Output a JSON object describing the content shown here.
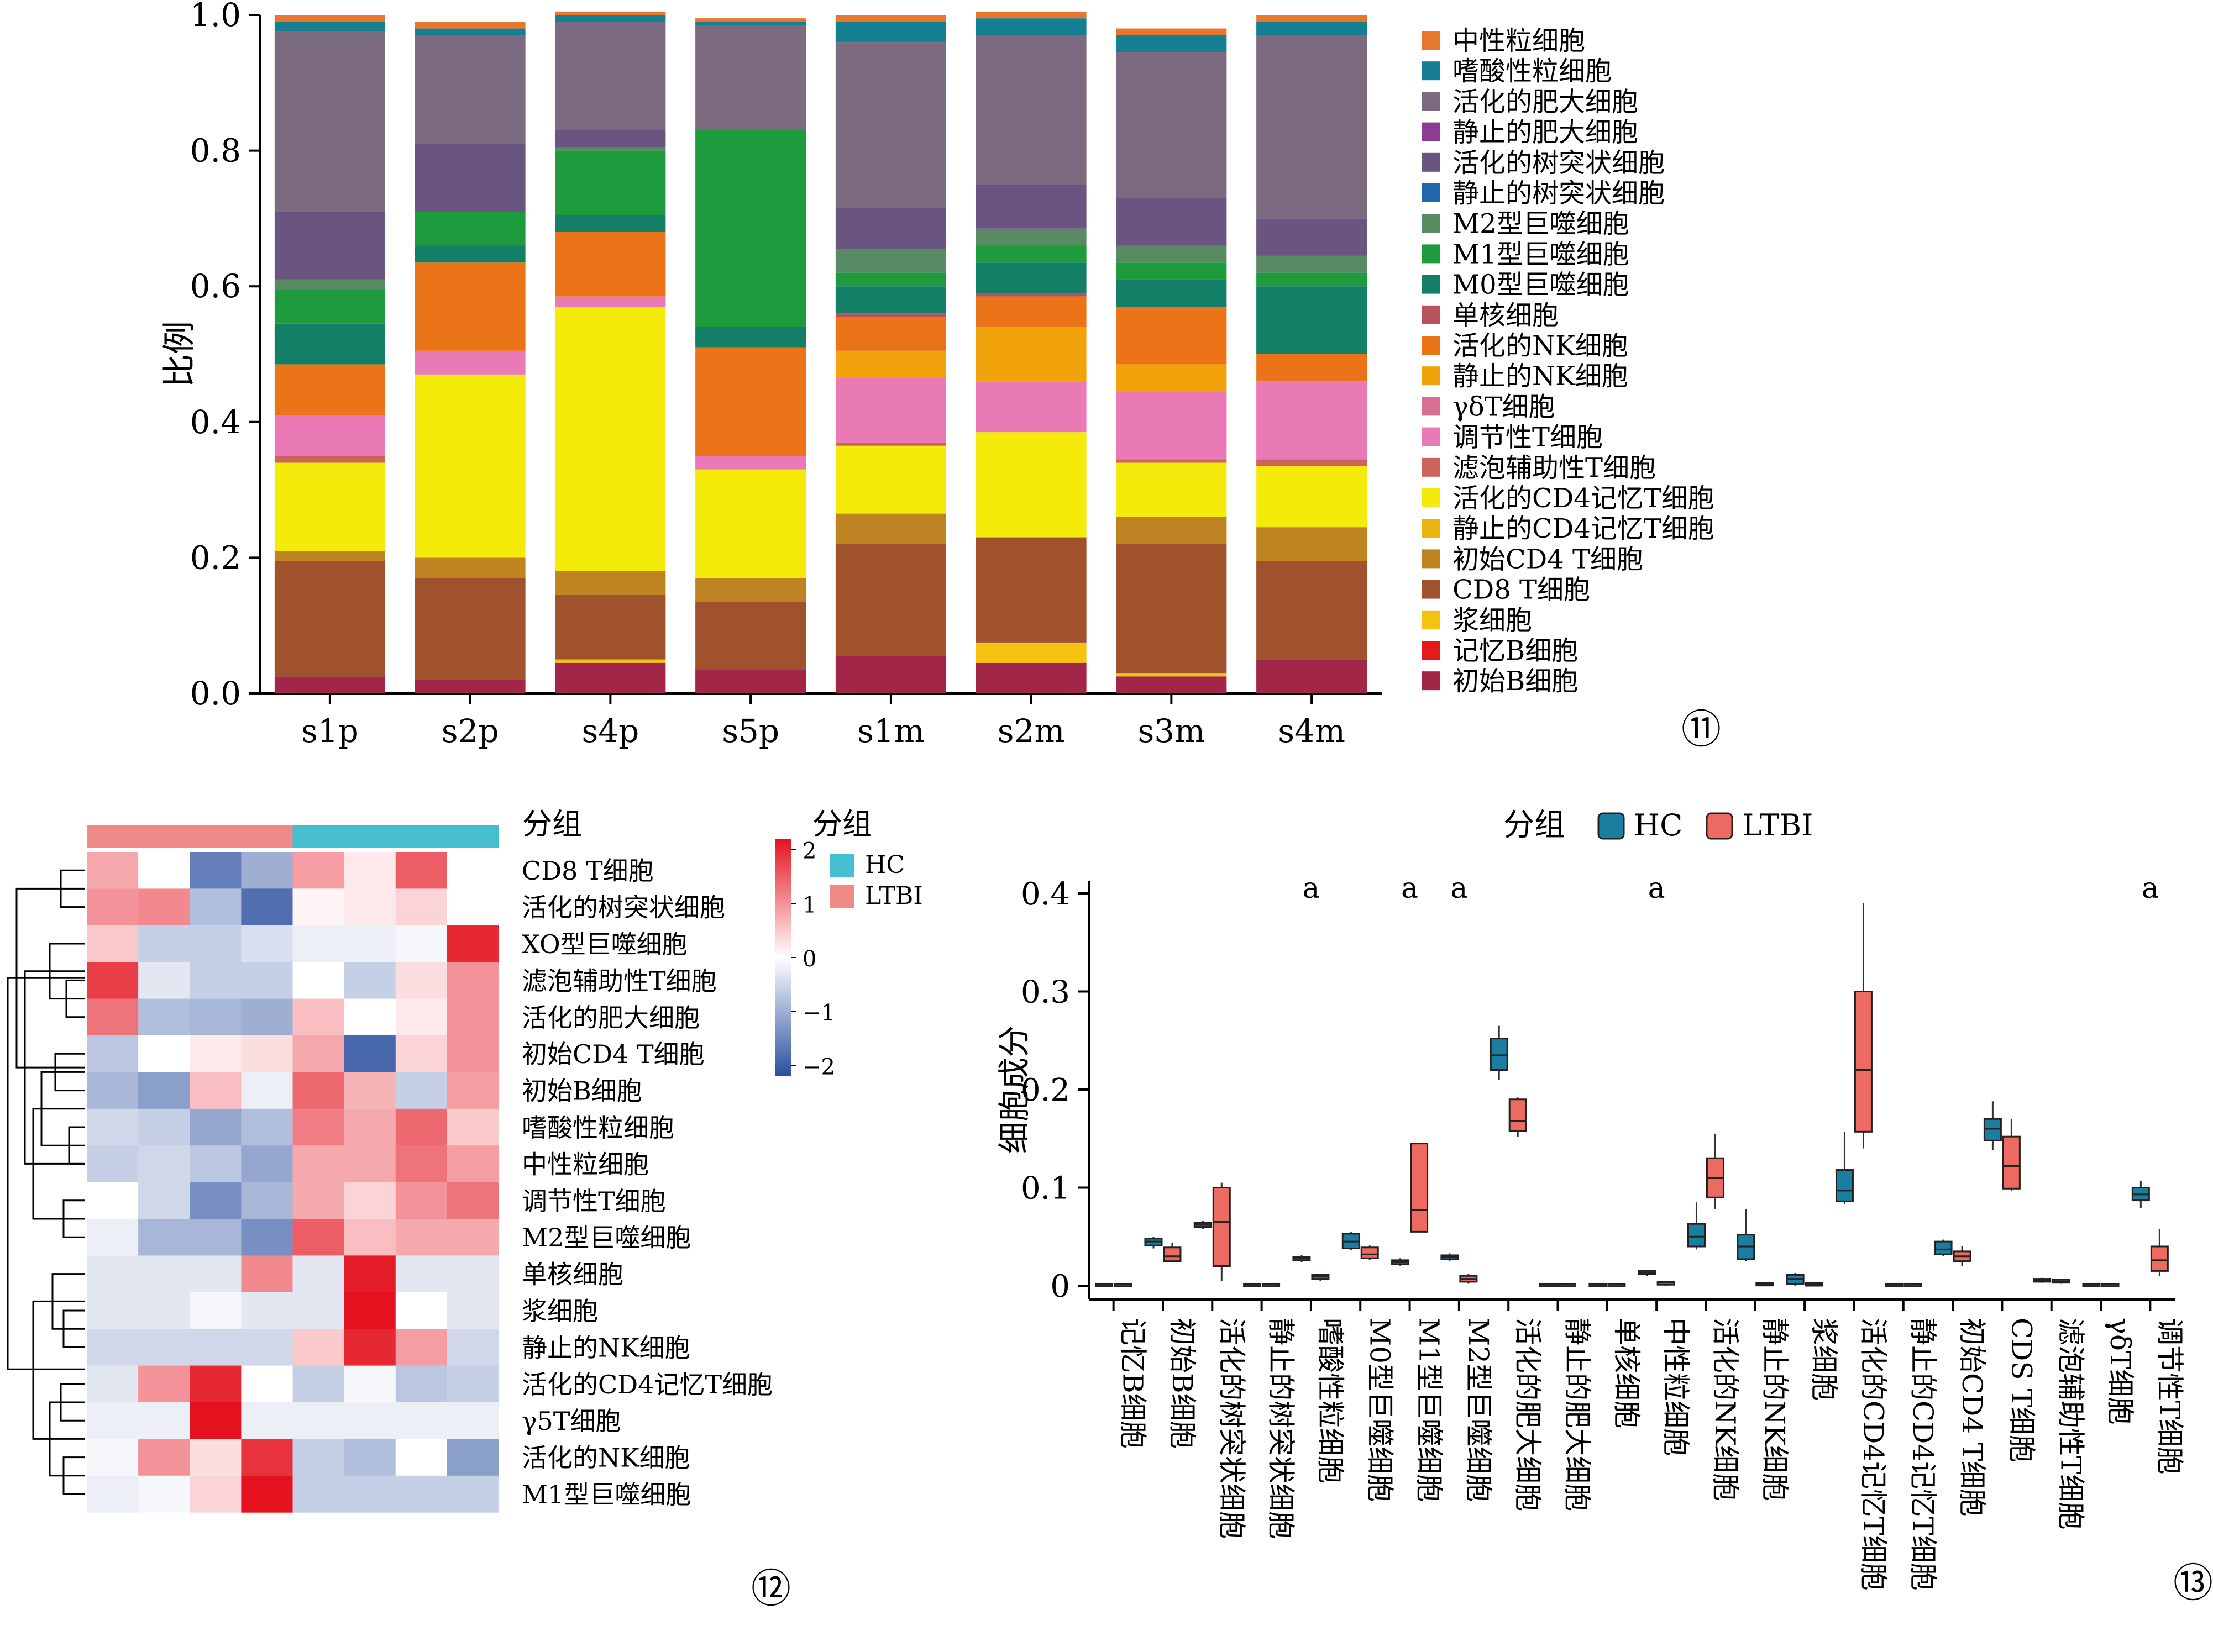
{
  "chart_data": [
    {
      "type": "bar",
      "panel": "⑪",
      "ylabel": "比例",
      "ylim": [
        0,
        1
      ],
      "yticks": [
        "0.0",
        "0.2",
        "0.4",
        "0.6",
        "0.8",
        "1.0"
      ],
      "categories": [
        "s1p",
        "s2p",
        "s4p",
        "s5p",
        "s1m",
        "s2m",
        "s3m",
        "s4m"
      ],
      "legend_position": "right",
      "series": [
        {
          "name": "初始B细胞",
          "color": "#a12648",
          "values": [
            0.025,
            0.02,
            0.045,
            0.035,
            0.055,
            0.045,
            0.025,
            0.05
          ]
        },
        {
          "name": "记忆B细胞",
          "color": "#e41a1c",
          "values": [
            0.0,
            0.0,
            0.0,
            0.0,
            0.0,
            0.0,
            0.0,
            0.0
          ]
        },
        {
          "name": "浆细胞",
          "color": "#f5c20f",
          "values": [
            0.0,
            0.0,
            0.005,
            0.0,
            0.0,
            0.03,
            0.005,
            0.0
          ]
        },
        {
          "name": "CD8 T细胞",
          "color": "#a0522d",
          "values": [
            0.17,
            0.15,
            0.095,
            0.1,
            0.165,
            0.155,
            0.19,
            0.145
          ]
        },
        {
          "name": "初始CD4 T细胞",
          "color": "#be8421",
          "values": [
            0.015,
            0.03,
            0.035,
            0.035,
            0.045,
            0.0,
            0.04,
            0.05
          ]
        },
        {
          "name": "静止的CD4记忆T细胞",
          "color": "#e8b40d",
          "values": [
            0.0,
            0.0,
            0.0,
            0.0,
            0.0,
            0.0,
            0.0,
            0.0
          ]
        },
        {
          "name": "活化的CD4记忆T细胞",
          "color": "#f5eb0a",
          "values": [
            0.13,
            0.27,
            0.39,
            0.16,
            0.1,
            0.155,
            0.08,
            0.09
          ]
        },
        {
          "name": "滤泡辅助性T细胞",
          "color": "#c9655b",
          "values": [
            0.01,
            0.0,
            0.0,
            0.0,
            0.005,
            0.0,
            0.005,
            0.01
          ]
        },
        {
          "name": "调节性T细胞",
          "color": "#ea7ab5",
          "values": [
            0.06,
            0.035,
            0.015,
            0.02,
            0.095,
            0.075,
            0.1,
            0.115
          ]
        },
        {
          "name": "γδT细胞",
          "color": "#d77090",
          "values": [
            0.0,
            0.0,
            0.0,
            0.0,
            0.0,
            0.0,
            0.0,
            0.0
          ]
        },
        {
          "name": "静止的NK细胞",
          "color": "#f2a30c",
          "values": [
            0.0,
            0.0,
            0.0,
            0.0,
            0.04,
            0.08,
            0.04,
            0.0
          ]
        },
        {
          "name": "活化的NK细胞",
          "color": "#eb7418",
          "values": [
            0.075,
            0.13,
            0.095,
            0.16,
            0.05,
            0.045,
            0.085,
            0.04
          ]
        },
        {
          "name": "单核细胞",
          "color": "#b5535f",
          "values": [
            0.0,
            0.0,
            0.0,
            0.0,
            0.005,
            0.005,
            0.0,
            0.0
          ]
        },
        {
          "name": "M0型巨噬细胞",
          "color": "#137f66",
          "values": [
            0.06,
            0.025,
            0.025,
            0.03,
            0.04,
            0.045,
            0.04,
            0.1
          ]
        },
        {
          "name": "M1型巨噬细胞",
          "color": "#1e9b3c",
          "values": [
            0.05,
            0.05,
            0.095,
            0.29,
            0.02,
            0.025,
            0.025,
            0.02
          ]
        },
        {
          "name": "M2型巨噬细胞",
          "color": "#588a64",
          "values": [
            0.015,
            0.0,
            0.005,
            0.0,
            0.035,
            0.025,
            0.025,
            0.025
          ]
        },
        {
          "name": "静止的树突状细胞",
          "color": "#1f68b0",
          "values": [
            0.0,
            0.0,
            0.0,
            0.0,
            0.0,
            0.0,
            0.0,
            0.0
          ]
        },
        {
          "name": "活化的树突状细胞",
          "color": "#6a5581",
          "values": [
            0.1,
            0.1,
            0.025,
            0.0,
            0.06,
            0.065,
            0.07,
            0.055
          ]
        },
        {
          "name": "静止的肥大细胞",
          "color": "#8e3b94",
          "values": [
            0.0,
            0.0,
            0.0,
            0.0,
            0.0,
            0.0,
            0.0,
            0.0
          ]
        },
        {
          "name": "活化的肥大细胞",
          "color": "#7b6a80",
          "values": [
            0.265,
            0.16,
            0.16,
            0.155,
            0.245,
            0.22,
            0.215,
            0.27
          ]
        },
        {
          "name": "嗜酸性粒细胞",
          "color": "#147f91",
          "values": [
            0.015,
            0.01,
            0.01,
            0.005,
            0.03,
            0.025,
            0.025,
            0.02
          ]
        },
        {
          "name": "中性粒细胞",
          "color": "#e8762c",
          "values": [
            0.01,
            0.01,
            0.005,
            0.005,
            0.01,
            0.01,
            0.01,
            0.01
          ]
        }
      ]
    },
    {
      "type": "heatmap",
      "panel": "⑫",
      "annotation_title": "分组",
      "legend_title": "分组",
      "groups": [
        {
          "name": "HC",
          "color": "#45bfd0"
        },
        {
          "name": "LTBI",
          "color": "#f08a86"
        }
      ],
      "column_groups": [
        "LTBI",
        "LTBI",
        "LTBI",
        "LTBI",
        "HC",
        "HC",
        "HC",
        "HC"
      ],
      "color_scale": {
        "min": -2.2,
        "max": 2.2,
        "ticks": [
          "2",
          "1",
          "0",
          "−1",
          "−2"
        ],
        "low": "#2a4f9f",
        "mid": "#ffffff",
        "high": "#e4121e"
      },
      "rows": [
        "CD8 T细胞",
        "活化的树突状细胞",
        "XO型巨噬细胞",
        "滤泡辅助性T细胞",
        "活化的肥大细胞",
        "初始CD4 T细胞",
        "初始B细胞",
        "嗜酸性粒细胞",
        "中性粒细胞",
        "调节性T细胞",
        "M2型巨噬细胞",
        "单核细胞",
        "浆细胞",
        "静止的NK细胞",
        "活化的CD4记忆T细胞",
        "γ5T细胞",
        "活化的NK细胞",
        "M1型巨噬细胞"
      ],
      "values": [
        [
          0.8,
          0.0,
          -1.6,
          -1.0,
          0.9,
          0.2,
          1.5,
          0.0
        ],
        [
          1.0,
          1.1,
          -0.8,
          -1.8,
          0.1,
          0.2,
          0.4,
          0.0
        ],
        [
          0.5,
          -0.6,
          -0.6,
          -0.4,
          -0.2,
          -0.2,
          -0.1,
          2.0
        ],
        [
          1.8,
          -0.3,
          -0.6,
          -0.6,
          0.0,
          -0.6,
          0.3,
          1.0
        ],
        [
          1.3,
          -0.8,
          -0.9,
          -1.0,
          0.6,
          0.0,
          0.2,
          1.0
        ],
        [
          -0.7,
          0.0,
          0.2,
          0.3,
          0.8,
          -1.9,
          0.4,
          1.0
        ],
        [
          -0.9,
          -1.2,
          0.6,
          -0.2,
          1.4,
          0.7,
          -0.6,
          0.9
        ],
        [
          -0.5,
          -0.6,
          -1.1,
          -0.8,
          1.2,
          0.8,
          1.4,
          0.5
        ],
        [
          -0.6,
          -0.5,
          -0.7,
          -1.1,
          0.8,
          0.8,
          1.3,
          0.9
        ],
        [
          0.0,
          -0.5,
          -1.4,
          -0.9,
          0.8,
          0.4,
          1.0,
          1.3
        ],
        [
          -0.2,
          -0.9,
          -0.9,
          -1.4,
          1.5,
          0.6,
          0.8,
          0.8
        ],
        [
          -0.3,
          -0.3,
          -0.3,
          1.1,
          -0.3,
          2.1,
          -0.3,
          -0.3
        ],
        [
          -0.3,
          -0.3,
          -0.1,
          -0.3,
          -0.3,
          2.2,
          0.0,
          -0.3
        ],
        [
          -0.5,
          -0.5,
          -0.5,
          -0.5,
          0.5,
          2.0,
          0.9,
          -0.5
        ],
        [
          -0.3,
          1.0,
          2.0,
          0.0,
          -0.6,
          -0.1,
          -0.7,
          -0.6
        ],
        [
          -0.2,
          -0.2,
          2.2,
          -0.2,
          -0.2,
          -0.2,
          -0.2,
          -0.2
        ],
        [
          -0.1,
          1.0,
          0.3,
          1.9,
          -0.6,
          -0.8,
          0.0,
          -1.2
        ],
        [
          -0.2,
          -0.1,
          0.4,
          2.2,
          -0.6,
          -0.6,
          -0.6,
          -0.6
        ]
      ]
    },
    {
      "type": "box",
      "panel": "⑬",
      "legend_title": "分组",
      "series": [
        {
          "name": "HC",
          "color": "#1b7ea1"
        },
        {
          "name": "LTBI",
          "color": "#ed6a63"
        }
      ],
      "ylabel": "细胞成分",
      "ylim": [
        0,
        0.4
      ],
      "yticks": [
        "0",
        "0.1",
        "0.2",
        "0.3",
        "0.4"
      ],
      "categories": [
        "记忆B细胞",
        "初始B细胞",
        "活化的树突状细胞",
        "静止的树突状细胞",
        "嗜酸性粒细胞",
        "M0型巨噬细胞",
        "M1型巨噬细胞",
        "M2型巨噬细胞",
        "活化的肥大细胞",
        "静止的肥大细胞",
        "单核细胞",
        "中性粒细胞",
        "活化的NK细胞",
        "静止的NK细胞",
        "浆细胞",
        "活化的CD4记忆T细胞",
        "静止的CD4记忆T细胞",
        "初始CD4 T细胞",
        "CDS T细胞",
        "滤泡辅助性T细胞",
        "γδT细胞",
        "调节性T细胞"
      ],
      "significance": [
        "",
        "",
        "",
        "",
        "a",
        "",
        "a",
        "a",
        "",
        "",
        "",
        "a",
        "",
        "",
        "",
        "",
        "",
        "",
        "",
        "",
        "",
        "a"
      ],
      "HC": [
        [
          0.0,
          0.0,
          0.001,
          0.002,
          0.002
        ],
        [
          0.038,
          0.041,
          0.045,
          0.048,
          0.05
        ],
        [
          0.058,
          0.06,
          0.062,
          0.064,
          0.066
        ],
        [
          0.0,
          0.0,
          0.001,
          0.002,
          0.002
        ],
        [
          0.024,
          0.026,
          0.028,
          0.029,
          0.031
        ],
        [
          0.036,
          0.038,
          0.045,
          0.053,
          0.055
        ],
        [
          0.02,
          0.022,
          0.024,
          0.026,
          0.028
        ],
        [
          0.025,
          0.027,
          0.029,
          0.031,
          0.033
        ],
        [
          0.21,
          0.22,
          0.235,
          0.252,
          0.265
        ],
        [
          0.0,
          0.0,
          0.001,
          0.002,
          0.002
        ],
        [
          0.0,
          0.0,
          0.001,
          0.002,
          0.002
        ],
        [
          0.01,
          0.012,
          0.013,
          0.015,
          0.016
        ],
        [
          0.037,
          0.04,
          0.05,
          0.063,
          0.085
        ],
        [
          0.025,
          0.027,
          0.04,
          0.052,
          0.078
        ],
        [
          0.0,
          0.002,
          0.007,
          0.011,
          0.013
        ],
        [
          0.083,
          0.086,
          0.097,
          0.118,
          0.157
        ],
        [
          0.0,
          0.0,
          0.001,
          0.002,
          0.002
        ],
        [
          0.03,
          0.032,
          0.037,
          0.045,
          0.047
        ],
        [
          0.138,
          0.148,
          0.16,
          0.17,
          0.188
        ],
        [
          0.003,
          0.004,
          0.005,
          0.007,
          0.008
        ],
        [
          0.0,
          0.0,
          0.001,
          0.002,
          0.002
        ],
        [
          0.079,
          0.087,
          0.093,
          0.1,
          0.107
        ]
      ],
      "LTBI": [
        [
          0.0,
          0.0,
          0.001,
          0.002,
          0.002
        ],
        [
          0.024,
          0.025,
          0.03,
          0.039,
          0.044
        ],
        [
          0.005,
          0.02,
          0.065,
          0.1,
          0.105
        ],
        [
          0.0,
          0.0,
          0.001,
          0.002,
          0.002
        ],
        [
          0.005,
          0.007,
          0.009,
          0.011,
          0.012
        ],
        [
          0.026,
          0.028,
          0.032,
          0.039,
          0.041
        ],
        [
          0.055,
          0.055,
          0.077,
          0.145,
          0.145
        ],
        [
          0.002,
          0.004,
          0.007,
          0.01,
          0.012
        ],
        [
          0.152,
          0.158,
          0.168,
          0.19,
          0.192
        ],
        [
          0.0,
          0.0,
          0.001,
          0.002,
          0.002
        ],
        [
          0.0,
          0.0,
          0.001,
          0.002,
          0.002
        ],
        [
          0.0,
          0.001,
          0.003,
          0.004,
          0.005
        ],
        [
          0.078,
          0.09,
          0.11,
          0.13,
          0.155
        ],
        [
          0.0,
          0.001,
          0.002,
          0.003,
          0.004
        ],
        [
          0.0,
          0.0,
          0.002,
          0.003,
          0.004
        ],
        [
          0.14,
          0.157,
          0.22,
          0.3,
          0.39
        ],
        [
          0.0,
          0.0,
          0.001,
          0.002,
          0.002
        ],
        [
          0.02,
          0.025,
          0.03,
          0.035,
          0.04
        ],
        [
          0.097,
          0.099,
          0.122,
          0.152,
          0.17
        ],
        [
          0.002,
          0.003,
          0.004,
          0.006,
          0.007
        ],
        [
          0.0,
          0.0,
          0.001,
          0.002,
          0.002
        ],
        [
          0.01,
          0.015,
          0.026,
          0.04,
          0.058
        ]
      ]
    }
  ]
}
